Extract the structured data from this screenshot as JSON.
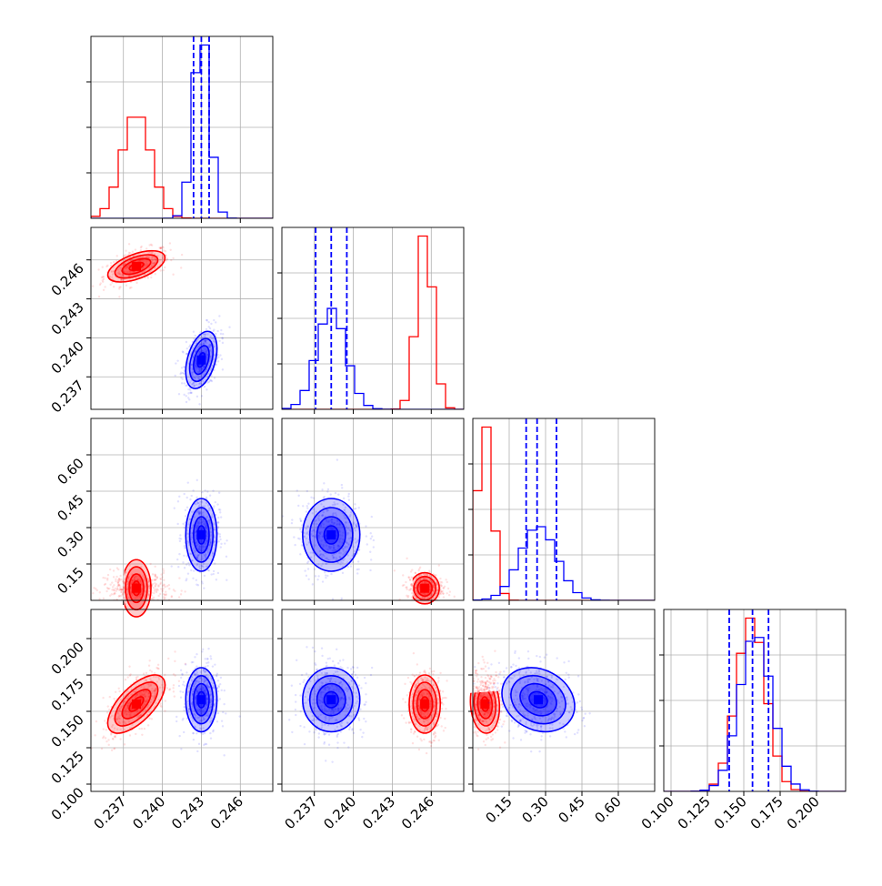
{
  "chart_data": {
    "type": "corner",
    "params": [
      {
        "id": "p1",
        "range": [
          0.2345,
          0.2485
        ],
        "ticks": [
          0.237,
          0.24,
          0.243,
          0.246
        ],
        "tick_labels": [
          "0.237",
          "0.240",
          "0.243",
          "0.246"
        ]
      },
      {
        "id": "p2",
        "range": [
          0.2345,
          0.2485
        ],
        "ticks": [
          0.237,
          0.24,
          0.243,
          0.246
        ],
        "tick_labels": [
          "0.237",
          "0.240",
          "0.243",
          "0.246"
        ]
      },
      {
        "id": "p3",
        "range": [
          0.0,
          0.75
        ],
        "ticks": [
          0.15,
          0.3,
          0.45,
          0.6
        ],
        "tick_labels": [
          "0.15",
          "0.30",
          "0.45",
          "0.60"
        ]
      },
      {
        "id": "p4",
        "range": [
          0.095,
          0.22
        ],
        "ticks": [
          0.1,
          0.125,
          0.15,
          0.175,
          0.2
        ],
        "tick_labels": [
          "0.100",
          "0.125",
          "0.150",
          "0.175",
          "0.200"
        ]
      }
    ],
    "series": [
      {
        "color": "#ff0000",
        "means": [
          0.238,
          0.2455,
          0.05,
          0.155
        ],
        "sds": [
          0.0011,
          0.0006,
          0.03,
          0.01
        ],
        "correlations": {
          "0-1": 0.55,
          "0-2": 0.0,
          "0-3": 0.65,
          "1-2": 0.0,
          "1-3": 0.0,
          "2-3": -0.1
        }
      },
      {
        "color": "#0000ff",
        "means": [
          0.243,
          0.2383,
          0.27,
          0.158
        ],
        "sds": [
          0.0006,
          0.0011,
          0.075,
          0.011
        ],
        "correlations": {
          "0-1": 0.4,
          "0-2": 0.0,
          "0-3": 0.0,
          "1-2": 0.0,
          "1-3": 0.0,
          "2-3": -0.2
        }
      }
    ],
    "quantile_series_index": 1,
    "quantile_lines": [
      [
        0.2424,
        0.243,
        0.2436
      ],
      [
        0.2371,
        0.2383,
        0.2395
      ],
      [
        0.22,
        0.265,
        0.345
      ],
      [
        0.14,
        0.156,
        0.167
      ]
    ],
    "histogram_bins": 20,
    "contour_levels_sigma": [
      0.5,
      1.0,
      1.5,
      2.0
    ],
    "grid": true
  }
}
